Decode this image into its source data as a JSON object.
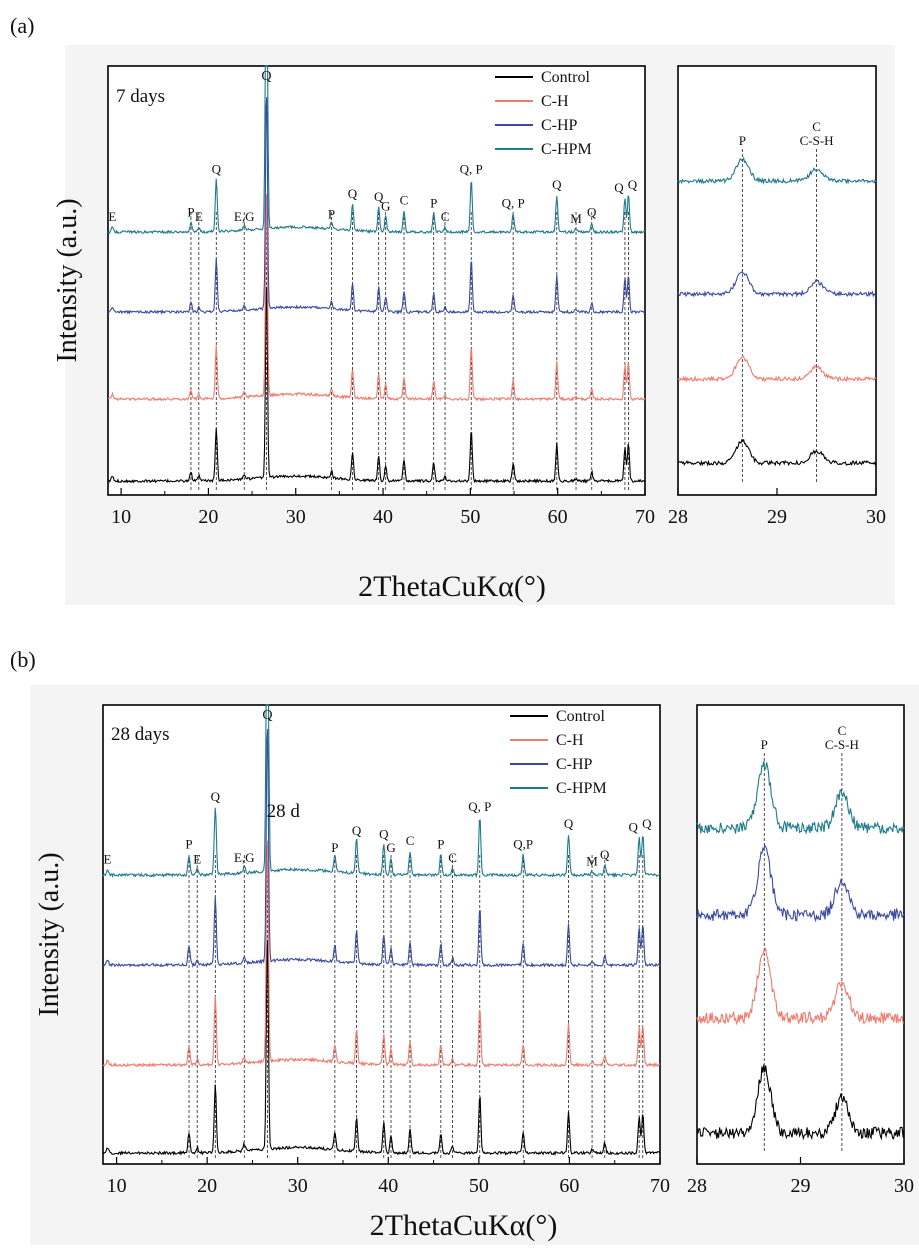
{
  "figure": {
    "panels": [
      {
        "tag": "(a)",
        "age_label": "7 days",
        "extra_annotation": "",
        "xlabel": "2ThetaCuKα(°)",
        "ylabel": "Intensity (a.u.)"
      },
      {
        "tag": "(b)",
        "age_label": "28 days",
        "extra_annotation": "28 d",
        "xlabel": "2ThetaCuKα(°)",
        "ylabel": "Intensity (a.u.)"
      }
    ],
    "main_ticks": [
      "10",
      "20",
      "30",
      "40",
      "50",
      "60",
      "70"
    ],
    "inset_ticks": [
      "28",
      "29",
      "30"
    ],
    "inset_labels": [
      "P",
      "C",
      "C-S-H"
    ],
    "legend": [
      "Control",
      "C-H",
      "C-HP",
      "C-HPM"
    ],
    "colors": {
      "Control": "#000000",
      "C-H": "#f07a6e",
      "C-HP": "#3b4aa0",
      "C-HPM": "#1f7a8a"
    }
  },
  "chart_data": [
    {
      "type": "line",
      "panel": "(a) main",
      "title": "7 days",
      "xlabel": "2ThetaCuKα(°)",
      "ylabel": "Intensity (a.u.)",
      "xlim": [
        8.5,
        70
      ],
      "xticks": [
        10,
        20,
        30,
        40,
        50,
        60,
        70
      ],
      "grid": false,
      "legend_position": "top-right",
      "series": [
        {
          "name": "Control"
        },
        {
          "name": "C-H"
        },
        {
          "name": "C-HP"
        },
        {
          "name": "C-HPM"
        }
      ],
      "peaks": [
        {
          "x": 9.0,
          "rel": 0.08,
          "label": "E"
        },
        {
          "x": 18.0,
          "rel": 0.15,
          "label": "P"
        },
        {
          "x": 18.9,
          "rel": 0.08,
          "label": "E"
        },
        {
          "x": 20.9,
          "rel": 0.85,
          "label": "Q"
        },
        {
          "x": 24.1,
          "rel": 0.08,
          "label": "E,G"
        },
        {
          "x": 26.65,
          "rel": 3.6,
          "label": "Q"
        },
        {
          "x": 34.1,
          "rel": 0.12,
          "label": "P"
        },
        {
          "x": 36.5,
          "rel": 0.45,
          "label": "Q"
        },
        {
          "x": 39.5,
          "rel": 0.4,
          "label": "Q"
        },
        {
          "x": 40.3,
          "rel": 0.25,
          "label": "G"
        },
        {
          "x": 42.4,
          "rel": 0.35,
          "label": "C"
        },
        {
          "x": 45.8,
          "rel": 0.3,
          "label": "P"
        },
        {
          "x": 47.1,
          "rel": 0.08,
          "label": "C"
        },
        {
          "x": 50.1,
          "rel": 0.85,
          "label": "Q, P"
        },
        {
          "x": 54.9,
          "rel": 0.3,
          "label": "Q, P"
        },
        {
          "x": 59.9,
          "rel": 0.6,
          "label": "Q"
        },
        {
          "x": 62.1,
          "rel": 0.05,
          "label": "M"
        },
        {
          "x": 63.9,
          "rel": 0.15,
          "label": "Q"
        },
        {
          "x": 67.7,
          "rel": 0.55,
          "label": "Q"
        },
        {
          "x": 68.1,
          "rel": 0.6,
          "label": "Q"
        }
      ]
    },
    {
      "type": "line",
      "panel": "(a) inset",
      "xlabel": "",
      "ylabel": "",
      "xlim": [
        28,
        30
      ],
      "xticks": [
        28,
        29,
        30
      ],
      "series": [
        {
          "name": "Control"
        },
        {
          "name": "C-H"
        },
        {
          "name": "C-HP"
        },
        {
          "name": "C-HPM"
        }
      ],
      "peaks": [
        {
          "x": 28.65,
          "label": "P"
        },
        {
          "x": 29.4,
          "label": "C C-S-H"
        }
      ]
    },
    {
      "type": "line",
      "panel": "(b) main",
      "title": "28 days",
      "xlabel": "2ThetaCuKα(°)",
      "ylabel": "Intensity (a.u.)",
      "xlim": [
        8.5,
        70
      ],
      "xticks": [
        10,
        20,
        30,
        40,
        50,
        60,
        70
      ],
      "grid": false,
      "legend_position": "top-right",
      "series": [
        {
          "name": "Control"
        },
        {
          "name": "C-H"
        },
        {
          "name": "C-HP"
        },
        {
          "name": "C-HPM"
        }
      ],
      "peaks": [
        {
          "x": 9.0,
          "rel": 0.08,
          "label": "E"
        },
        {
          "x": 18.0,
          "rel": 0.3,
          "label": "P"
        },
        {
          "x": 18.9,
          "rel": 0.08,
          "label": "E"
        },
        {
          "x": 20.9,
          "rel": 1.0,
          "label": "Q"
        },
        {
          "x": 24.1,
          "rel": 0.1,
          "label": "E,G"
        },
        {
          "x": 26.65,
          "rel": 3.6,
          "label": "Q"
        },
        {
          "x": 34.1,
          "rel": 0.25,
          "label": "P"
        },
        {
          "x": 36.5,
          "rel": 0.5,
          "label": "Q"
        },
        {
          "x": 39.5,
          "rel": 0.45,
          "label": "Q"
        },
        {
          "x": 40.3,
          "rel": 0.25,
          "label": "G"
        },
        {
          "x": 42.4,
          "rel": 0.35,
          "label": "C"
        },
        {
          "x": 45.8,
          "rel": 0.3,
          "label": "P"
        },
        {
          "x": 47.1,
          "rel": 0.1,
          "label": "C"
        },
        {
          "x": 50.1,
          "rel": 0.85,
          "label": "Q, P"
        },
        {
          "x": 54.9,
          "rel": 0.3,
          "label": "Q,P"
        },
        {
          "x": 59.9,
          "rel": 0.6,
          "label": "Q"
        },
        {
          "x": 62.5,
          "rel": 0.05,
          "label": "M"
        },
        {
          "x": 63.9,
          "rel": 0.15,
          "label": "Q"
        },
        {
          "x": 67.7,
          "rel": 0.55,
          "label": "Q"
        },
        {
          "x": 68.1,
          "rel": 0.6,
          "label": "Q"
        }
      ]
    },
    {
      "type": "line",
      "panel": "(b) inset",
      "xlabel": "",
      "ylabel": "",
      "xlim": [
        28,
        30
      ],
      "xticks": [
        28,
        29,
        30
      ],
      "series": [
        {
          "name": "Control"
        },
        {
          "name": "C-H"
        },
        {
          "name": "C-HP"
        },
        {
          "name": "C-HPM"
        }
      ],
      "peaks": [
        {
          "x": 28.65,
          "label": "P"
        },
        {
          "x": 29.4,
          "label": "C C-S-H"
        }
      ]
    }
  ]
}
